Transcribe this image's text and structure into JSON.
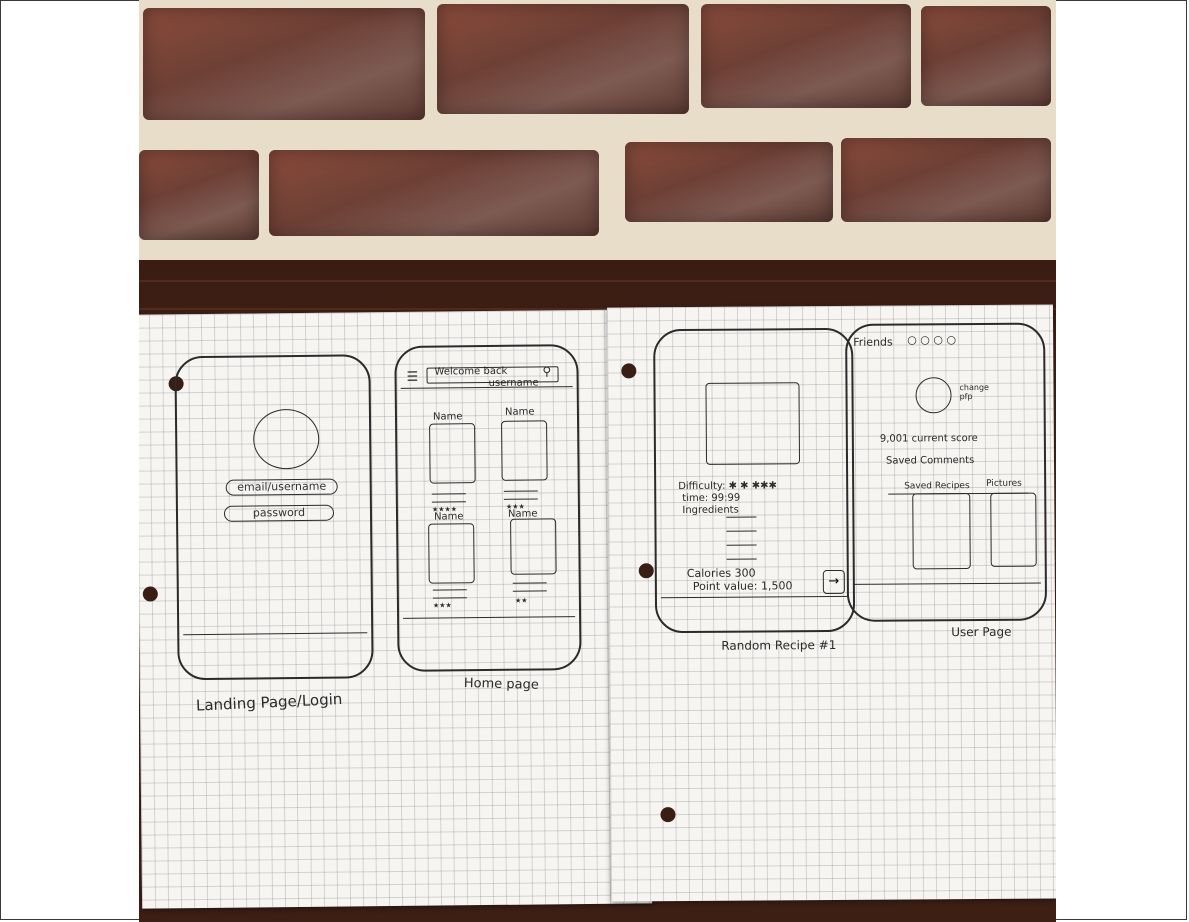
{
  "sketches": {
    "login": {
      "email_field": "email/username",
      "password_field": "password",
      "caption": "Landing Page/Login"
    },
    "home": {
      "header_line1": "Welcome back",
      "header_line2": "username",
      "card_labels": [
        "Name",
        "Name",
        "Name",
        "Name"
      ],
      "card_ratings": [
        "★★★★",
        "★★★",
        "★★★",
        "★★"
      ],
      "caption": "Home page"
    },
    "recipe": {
      "difficulty": "Difficulty: ✱ ✱ ✱✱✱",
      "time": "time: 99:99",
      "ingredients": "Ingredients",
      "calories": "Calories 300",
      "point_value": "Point value: 1,500",
      "next_arrow": "→",
      "caption": "Random Recipe #1"
    },
    "user": {
      "friends": "Friends",
      "change_pfp": "change pfp",
      "score": "9,001 current score",
      "saved_comments": "Saved Comments",
      "saved_recipes": "Saved Recipes",
      "pictures": "Pictures",
      "caption": "User Page"
    }
  },
  "colors": {
    "paper": "#f6f5f2",
    "ink": "#2b2b2b",
    "table": "#3b2016",
    "brick": "#7a4538",
    "mortar": "#e7ddc9"
  }
}
